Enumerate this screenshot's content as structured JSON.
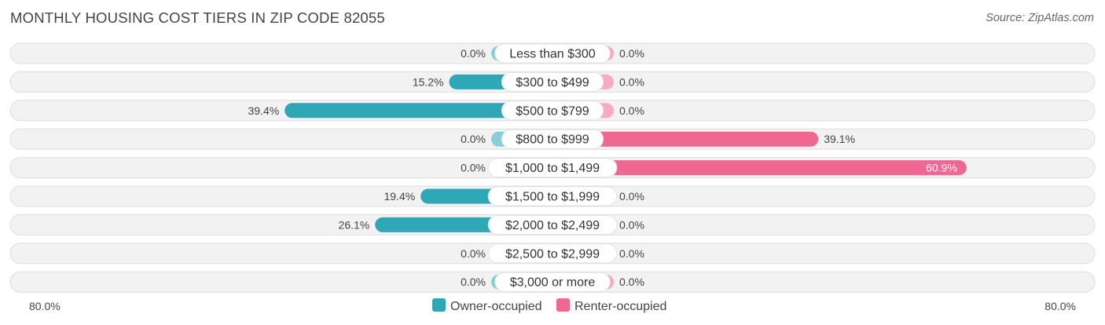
{
  "title": "MONTHLY HOUSING COST TIERS IN ZIP CODE 82055",
  "source": "Source: ZipAtlas.com",
  "chart_data": {
    "type": "bar",
    "orientation": "horizontal-diverging",
    "categories": [
      "Less than $300",
      "$300 to $499",
      "$500 to $799",
      "$800 to $999",
      "$1,000 to $1,499",
      "$1,500 to $1,999",
      "$2,000 to $2,499",
      "$2,500 to $2,999",
      "$3,000 or more"
    ],
    "series": [
      {
        "name": "Owner-occupied",
        "values": [
          0.0,
          15.2,
          39.4,
          0.0,
          0.0,
          19.4,
          26.1,
          0.0,
          0.0
        ],
        "labels": [
          "0.0%",
          "15.2%",
          "39.4%",
          "0.0%",
          "0.0%",
          "19.4%",
          "26.1%",
          "0.0%",
          "0.0%"
        ],
        "color": "#2ea7b6",
        "color_light": "#87cfd8"
      },
      {
        "name": "Renter-occupied",
        "values": [
          0.0,
          0.0,
          0.0,
          39.1,
          60.9,
          0.0,
          0.0,
          0.0,
          0.0
        ],
        "labels": [
          "0.0%",
          "0.0%",
          "0.0%",
          "39.1%",
          "60.9%",
          "0.0%",
          "0.0%",
          "0.0%",
          "0.0%"
        ],
        "color": "#f06792",
        "color_light": "#f6aac3"
      }
    ],
    "xlim": [
      -80,
      80
    ],
    "axis_left_label": "80.0%",
    "axis_right_label": "80.0%",
    "legend_placement": "bottom-center"
  }
}
